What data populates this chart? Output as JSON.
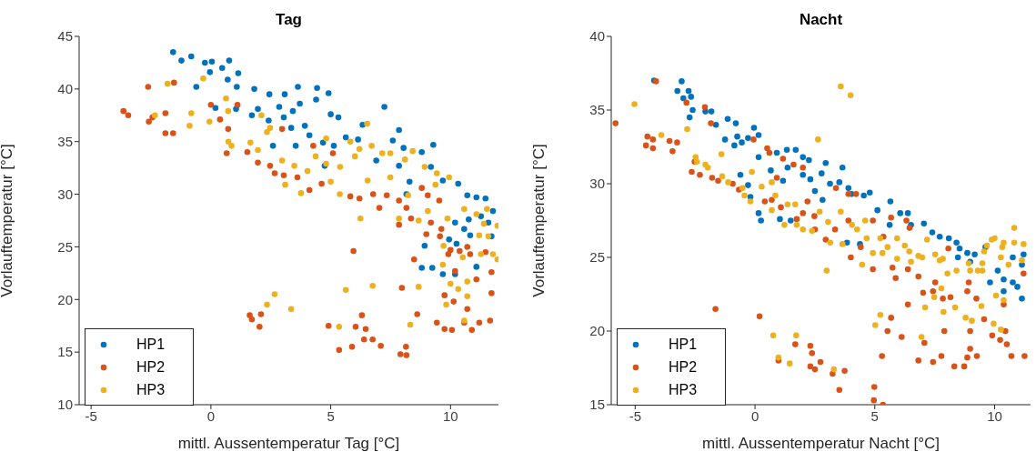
{
  "chart_data": [
    {
      "type": "scatter",
      "title": "Tag",
      "xlabel": "mittl. Aussentemperatur Tag [°C]",
      "ylabel": "Vorlauftemperatur [°C]",
      "xlim": [
        -5.5,
        12
      ],
      "xticks": [
        -5,
        0,
        5,
        10
      ],
      "ylim": [
        10,
        45
      ],
      "yticks": [
        10,
        15,
        20,
        25,
        30,
        35,
        40,
        45
      ],
      "legend": "bottom left",
      "marker": "circle",
      "grid": false,
      "series": [
        {
          "name": "HP1",
          "color": "#0072bd",
          "x": [
            -1.58,
            -1.23,
            -0.82,
            -0.25,
            0.04,
            0.76,
            -0.04,
            0.47,
            1.14,
            0.7,
            1.08,
            -0.61,
            1.81,
            2.44,
            3.08,
            3.63,
            4.43,
            4.91,
            4.39,
            3.71,
            2.85,
            1.96,
            1.71,
            2.41,
            3.04,
            3.42,
            3.92,
            3.35,
            4.11,
            4.68,
            5.0,
            5.32,
            5.63,
            5.13,
            6.14,
            6.33,
            7.24,
            7.85,
            7.59,
            8.04,
            8.8,
            9.28,
            6.9,
            7.85,
            8.29,
            9.18,
            9.68,
            10.32,
            10.7,
            11.08,
            11.46,
            11.77,
            11.27,
            10.76,
            10.19,
            10.57,
            10.82,
            9.94,
            11.58,
            11.71,
            8.92,
            10.25,
            8.8,
            9.24,
            9.68,
            10.19,
            11.08,
            0.19,
            1.05,
            2.59,
            3.54,
            4.75,
            8.16
          ],
          "values": [
            43.5,
            42.7,
            43.1,
            42.5,
            42.6,
            42.7,
            41.6,
            42.0,
            41.5,
            40.9,
            40.2,
            40.2,
            40.0,
            39.5,
            39.5,
            40.2,
            40.1,
            39.6,
            39.0,
            38.6,
            38.3,
            38.1,
            37.5,
            37.0,
            37.3,
            37.9,
            36.5,
            36.3,
            35.6,
            34.9,
            37.6,
            37.3,
            35.4,
            34.6,
            35.2,
            36.6,
            38.3,
            36.1,
            35.1,
            34.4,
            34.0,
            34.7,
            33.2,
            32.7,
            31.2,
            32.6,
            31.3,
            31.0,
            29.9,
            29.7,
            29.6,
            28.4,
            27.9,
            27.6,
            27.3,
            26.7,
            26.1,
            25.7,
            27.3,
            26.0,
            25.1,
            25.3,
            23.0,
            23.0,
            22.4,
            22.4,
            23.1,
            38.2,
            38.1,
            34.6,
            34.6,
            32.7,
            30.0
          ]
        },
        {
          "name": "HP2",
          "color": "#d95319",
          "x": [
            -3.65,
            -3.45,
            -2.62,
            -2.59,
            -2.44,
            -1.9,
            -1.9,
            -1.58,
            -1.54,
            0.0,
            0.38,
            0.72,
            1.11,
            0.66,
            1.52,
            1.96,
            2.47,
            2.66,
            2.97,
            3.04,
            3.61,
            4.11,
            4.27,
            4.62,
            5.09,
            5.82,
            6.2,
            6.77,
            7.03,
            7.34,
            7.85,
            8.16,
            8.8,
            9.05,
            9.53,
            7.85,
            8.35,
            9.18,
            9.62,
            8.99,
            9.56,
            10.0,
            10.38,
            10.7,
            10.82,
            11.46,
            11.71,
            11.08,
            10.19,
            9.75,
            10.13,
            10.7,
            11.71,
            11.65,
            10.57,
            10.06,
            9.43,
            10.89,
            9.75,
            11.2,
            8.48,
            7.97,
            8.61,
            5.95,
            1.62,
            1.71,
            2.09,
            2.03,
            4.91,
            5.35,
            5.89,
            6.04,
            6.3,
            6.46,
            6.39,
            6.75,
            7.09,
            7.91,
            8.14,
            8.16,
            9.91
          ],
          "values": [
            37.9,
            37.5,
            40.2,
            36.9,
            37.3,
            37.7,
            35.8,
            35.8,
            40.6,
            38.5,
            37.1,
            36.2,
            38.5,
            33.9,
            34.0,
            33.0,
            32.7,
            32.0,
            36.2,
            31.8,
            31.6,
            30.4,
            34.6,
            31.0,
            33.9,
            29.8,
            29.6,
            30.0,
            28.7,
            29.9,
            29.4,
            28.7,
            30.6,
            29.9,
            29.4,
            27.1,
            27.7,
            27.3,
            26.7,
            26.2,
            26.0,
            24.7,
            24.6,
            25.0,
            24.3,
            24.5,
            22.6,
            21.9,
            22.7,
            20.4,
            19.8,
            19.1,
            20.6,
            18.0,
            17.8,
            17.1,
            17.8,
            17.1,
            17.2,
            17.8,
            23.8,
            21.1,
            18.6,
            24.6,
            18.5,
            18.1,
            18.6,
            17.4,
            17.5,
            15.2,
            15.5,
            17.4,
            18.5,
            17.2,
            16.2,
            16.2,
            15.6,
            14.8,
            15.5,
            14.7,
            24.3
          ]
        },
        {
          "name": "HP3",
          "color": "#edb120",
          "x": [
            -2.34,
            -1.81,
            -0.89,
            -0.82,
            -0.32,
            -0.06,
            0.63,
            0.72,
            0.73,
            0.86,
            1.65,
            1.96,
            2.11,
            2.47,
            2.97,
            3.1,
            3.48,
            3.76,
            4.03,
            4.37,
            4.81,
            4.81,
            5.0,
            5.39,
            5.38,
            5.82,
            6.01,
            6.2,
            6.52,
            6.71,
            6.54,
            7.15,
            7.49,
            7.49,
            8.1,
            8.42,
            8.23,
            8.92,
            9.43,
            9.94,
            9.37,
            9.05,
            9.87,
            10.57,
            11.08,
            11.52,
            11.96,
            11.39,
            11.2,
            11.58,
            9.71,
            10.51,
            11.27,
            11.77,
            11.96,
            9.68,
            10.0,
            10.7,
            10.32,
            10.7,
            9.82,
            10.57,
            8.67,
            8.32,
            6.24,
            7.85,
            8.67,
            6.75,
            5.63,
            5.35,
            2.66,
            2.34,
            3.35,
            2.34
          ],
          "values": [
            37.5,
            40.5,
            36.5,
            37.7,
            41.0,
            36.9,
            39.1,
            37.9,
            35.0,
            34.6,
            34.9,
            34.2,
            37.5,
            36.3,
            33.2,
            30.9,
            32.7,
            30.1,
            32.2,
            33.6,
            35.3,
            32.9,
            31.2,
            32.6,
            30.0,
            35.0,
            33.6,
            34.3,
            36.7,
            34.6,
            31.3,
            33.9,
            33.9,
            31.6,
            33.3,
            34.1,
            29.9,
            32.6,
            32.0,
            31.6,
            30.9,
            28.4,
            27.7,
            28.6,
            28.1,
            28.6,
            27.0,
            27.2,
            26.1,
            26.0,
            25.1,
            24.0,
            24.3,
            24.3,
            23.8,
            23.3,
            21.5,
            21.7,
            21.0,
            20.3,
            19.5,
            18.0,
            21.2,
            17.6,
            27.7,
            27.7,
            27.5,
            21.3,
            20.9,
            17.4,
            20.5,
            19.5,
            19.1,
            35.9
          ]
        }
      ]
    },
    {
      "type": "scatter",
      "title": "Nacht",
      "xlabel": "mittl. Aussentemperatur Nacht [°C]",
      "ylabel": "Vorlauftemperatur [°C]",
      "xlim": [
        -6,
        11.5
      ],
      "xticks": [
        -5,
        0,
        5,
        10
      ],
      "ylim": [
        15,
        40
      ],
      "yticks": [
        15,
        20,
        25,
        30,
        35,
        40
      ],
      "legend": "bottom left",
      "marker": "circle",
      "grid": false,
      "series": [
        {
          "name": "HP1",
          "color": "#0072bd",
          "x": [
            -4.21,
            -3.06,
            -3.24,
            -2.99,
            -2.77,
            -2.67,
            -2.6,
            -2.73,
            -2.07,
            -1.82,
            -1.63,
            -1.14,
            -0.8,
            -1.25,
            -0.86,
            -0.74,
            -0.55,
            -0.29,
            -0.04,
            0.15,
            -0.61,
            -0.29,
            -0.19,
            0.15,
            0.15,
            0.25,
            0.66,
            0.91,
            1.17,
            1.33,
            1.7,
            1.36,
            2.0,
            2.25,
            2.0,
            2.31,
            2.5,
            2.82,
            1.04,
            1.49,
            2.78,
            2.95,
            3.65,
            3.13,
            3.52,
            3.9,
            4.03,
            4.54,
            4.79,
            3.84,
            4.38,
            5.11,
            5.62,
            5.65,
            6.06,
            6.38,
            6.51,
            7.05,
            7.4,
            7.71,
            8.09,
            8.41,
            8.54,
            8.86,
            9.17,
            8.47,
            8.98,
            9.62,
            10.13,
            9.81,
            10.38,
            10.76,
            10.95,
            10.38,
            11.14,
            11.21,
            11.14,
            10.76
          ],
          "values": [
            37.0,
            36.95,
            36.3,
            35.8,
            36.3,
            35.9,
            35.0,
            34.5,
            34.9,
            34.9,
            34.0,
            34.4,
            34.1,
            33.0,
            32.6,
            33.2,
            32.8,
            33.1,
            33.8,
            33.3,
            30.6,
            29.9,
            29.1,
            31.8,
            28.0,
            27.5,
            30.9,
            32.1,
            30.2,
            32.3,
            32.3,
            31.1,
            31.8,
            31.6,
            30.6,
            30.3,
            29.5,
            28.9,
            27.6,
            27.5,
            30.7,
            31.4,
            31.1,
            30.0,
            30.1,
            29.7,
            29.3,
            29.2,
            29.4,
            26.0,
            25.9,
            28.2,
            27.2,
            28.8,
            28.0,
            28.0,
            27.2,
            27.3,
            26.7,
            26.4,
            26.3,
            26.0,
            25.6,
            25.3,
            25.2,
            25.0,
            24.7,
            25.7,
            24.1,
            23.3,
            23.5,
            23.3,
            23.0,
            22.7,
            24.5,
            25.2,
            22.2,
            25.0
          ]
        },
        {
          "name": "HP2",
          "color": "#d95319",
          "x": [
            -5.82,
            -4.13,
            -4.49,
            -4.26,
            -4.55,
            -4.26,
            -3.57,
            -3.25,
            -3.44,
            -2.86,
            -2.52,
            -2.64,
            -2.3,
            -2.09,
            -1.84,
            -1.79,
            -1.54,
            -0.93,
            -0.67,
            -0.06,
            0.51,
            0.6,
            0.91,
            0.41,
            0.7,
            1.08,
            1.17,
            1.61,
            2.0,
            1.74,
            2.0,
            2.19,
            2.48,
            2.5,
            2.95,
            3.38,
            3.34,
            3.9,
            4.0,
            4.41,
            3.9,
            4.22,
            4.92,
            4.92,
            5.36,
            5.68,
            5.74,
            5.87,
            6.38,
            6.32,
            6.45,
            6.82,
            7.02,
            7.52,
            7.43,
            7.84,
            8.16,
            8.07,
            8.92,
            8.86,
            9.24,
            9.56,
            10.38,
            10.45,
            10.23,
            10.51,
            10.7,
            11.25,
            11.21,
            9.9,
            6.38,
            5.68,
            5.53,
            6.12,
            5.3,
            7.07,
            6.82,
            7.43,
            7.78,
            7.9,
            8.32,
            8.73,
            8.86,
            8.98,
            9.26,
            8.98,
            -1.65,
            0.19,
            0.98,
            1.68,
            2.31,
            2.38,
            2.31,
            2.5,
            2.73,
            3.24,
            3.74,
            3.52,
            4.98,
            4.96,
            5.34
          ],
          "values": [
            34.1,
            36.95,
            33.2,
            33.0,
            32.6,
            32.4,
            32.9,
            32.8,
            32.2,
            35.5,
            31.5,
            30.8,
            30.6,
            35.2,
            34.1,
            30.4,
            30.2,
            30.0,
            29.6,
            33.0,
            32.4,
            32.1,
            30.4,
            28.8,
            28.9,
            28.4,
            31.7,
            31.3,
            31.1,
            27.6,
            28.0,
            28.8,
            27.8,
            26.9,
            26.2,
            29.7,
            26.9,
            27.5,
            25.0,
            25.7,
            29.3,
            29.3,
            27.5,
            24.2,
            26.4,
            27.7,
            24.3,
            23.6,
            24.2,
            27.5,
            27.0,
            23.7,
            22.6,
            23.3,
            22.7,
            22.2,
            22.3,
            25.6,
            23.3,
            22.7,
            22.2,
            20.8,
            21.8,
            20.0,
            19.4,
            19.1,
            18.3,
            18.3,
            23.9,
            19.7,
            21.8,
            20.9,
            20.0,
            19.6,
            18.3,
            19.2,
            18.0,
            17.9,
            18.3,
            20.0,
            17.6,
            17.6,
            18.2,
            18.8,
            18.3,
            20.0,
            21.5,
            21.0,
            18.0,
            19.1,
            19.0,
            18.5,
            17.6,
            17.4,
            17.9,
            17.1,
            17.3,
            16.0,
            16.2,
            15.3,
            15.0
          ]
        },
        {
          "name": "HP3",
          "color": "#edb120",
          "x": [
            -5.03,
            -3.91,
            -2.83,
            -2.48,
            -2.43,
            -2.07,
            -1.97,
            -1.4,
            -1.37,
            -1.12,
            -0.52,
            -0.44,
            -0.19,
            -0.13,
            0.28,
            0.7,
            0.7,
            0.85,
            1.36,
            1.23,
            1.68,
            1.74,
            2.0,
            2.38,
            2.63,
            2.7,
            3.05,
            3.14,
            3.58,
            3.99,
            3.58,
            3.65,
            4.05,
            4.26,
            4.47,
            4.6,
            4.66,
            4.92,
            5.23,
            5.32,
            5.53,
            5.93,
            5.93,
            6.25,
            6.44,
            6.51,
            6.82,
            6.98,
            7.18,
            7.52,
            7.71,
            7.84,
            8.03,
            8.41,
            8.92,
            8.98,
            9.3,
            9.49,
            9.56,
            9.68,
            9.88,
            10.0,
            10.32,
            10.38,
            10.82,
            11.21,
            10.82,
            10.26,
            10.58,
            11.14,
            9.49,
            10.06,
            10.38,
            7.78,
            8.35,
            7.87,
            7.1,
            7.48,
            8.79,
            9.05,
            9.45,
            9.96,
            10.26,
            6.95,
            5.23,
            5.02,
            2.99,
            0.76,
            1.72,
            0.98,
            1.45,
            3.29
          ],
          "values": [
            35.4,
            33.3,
            33.7,
            31.8,
            31.5,
            31.3,
            31.1,
            32.0,
            30.5,
            30.1,
            29.7,
            29.2,
            28.8,
            30.8,
            29.8,
            30.1,
            28.2,
            29.2,
            28.6,
            27.2,
            28.6,
            27.2,
            26.9,
            26.8,
            33.0,
            28.1,
            27.4,
            26.0,
            36.6,
            36.0,
            28.1,
            25.9,
            27.2,
            26.9,
            24.5,
            27.5,
            26.3,
            25.3,
            26.3,
            25.3,
            25.7,
            26.3,
            24.9,
            25.8,
            25.4,
            24.7,
            25.1,
            25.0,
            26.2,
            25.2,
            24.8,
            24.9,
            23.9,
            24.1,
            24.6,
            24.1,
            24.1,
            24.6,
            25.4,
            25.8,
            26.2,
            26.3,
            25.7,
            26.0,
            27.0,
            25.9,
            26.0,
            25.0,
            24.5,
            24.8,
            24.1,
            22.4,
            22.1,
            22.9,
            21.6,
            21.3,
            21.6,
            22.3,
            20.9,
            20.7,
            21.7,
            20.5,
            20.1,
            19.6,
            21.1,
            20.4,
            24.1,
            19.7,
            19.7,
            18.2,
            17.8,
            17.4
          ]
        }
      ]
    }
  ]
}
